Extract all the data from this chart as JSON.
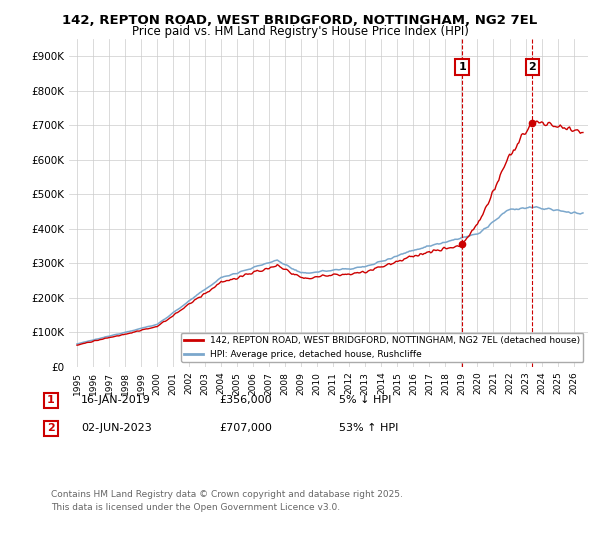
{
  "title_line1": "142, REPTON ROAD, WEST BRIDGFORD, NOTTINGHAM, NG2 7EL",
  "title_line2": "Price paid vs. HM Land Registry's House Price Index (HPI)",
  "ylim": [
    0,
    950000
  ],
  "yticks": [
    0,
    100000,
    200000,
    300000,
    400000,
    500000,
    600000,
    700000,
    800000,
    900000
  ],
  "ytick_labels": [
    "£0",
    "£100K",
    "£200K",
    "£300K",
    "£400K",
    "£500K",
    "£600K",
    "£700K",
    "£800K",
    "£900K"
  ],
  "line1_color": "#cc0000",
  "line2_color": "#7ba7cc",
  "vline_color": "#cc0000",
  "sale1_year": 2019.04,
  "sale2_year": 2023.42,
  "sale1_price": 356000,
  "sale2_price": 707000,
  "legend_label1": "142, REPTON ROAD, WEST BRIDGFORD, NOTTINGHAM, NG2 7EL (detached house)",
  "legend_label2": "HPI: Average price, detached house, Rushcliffe",
  "transaction1": "16-JAN-2019",
  "transaction1_price": "£356,000",
  "transaction1_hpi": "5% ↓ HPI",
  "transaction2": "02-JUN-2023",
  "transaction2_price": "£707,000",
  "transaction2_hpi": "53% ↑ HPI",
  "footer": "Contains HM Land Registry data © Crown copyright and database right 2025.\nThis data is licensed under the Open Government Licence v3.0.",
  "bg_color": "#ffffff",
  "grid_color": "#cccccc",
  "xlim_left": 1994.5,
  "xlim_right": 2026.9
}
